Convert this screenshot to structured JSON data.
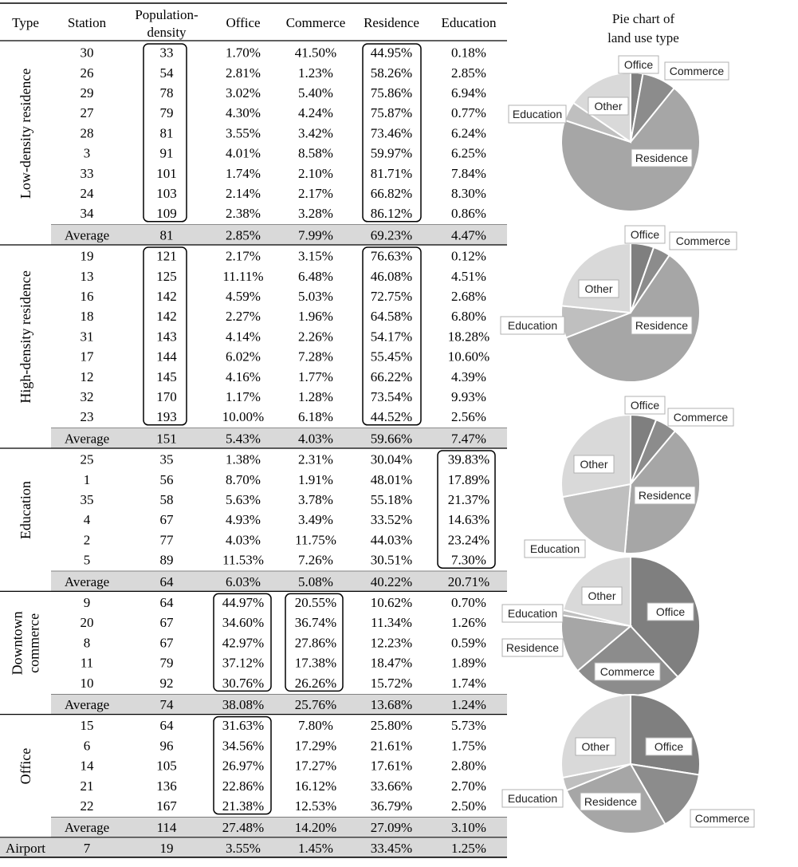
{
  "table": {
    "headers": {
      "type": "Type",
      "station": "Station",
      "density_l1": "Population-",
      "density_l2": "density",
      "office": "Office",
      "commerce": "Commerce",
      "residence": "Residence",
      "education": "Education"
    },
    "groups": [
      {
        "name": "Low-density residence",
        "name_lines": [
          "Low-density residence"
        ],
        "rows": [
          [
            "30",
            "33",
            "1.70%",
            "41.50%",
            "44.95%",
            "0.18%"
          ],
          [
            "26",
            "54",
            "2.81%",
            "1.23%",
            "58.26%",
            "2.85%"
          ],
          [
            "29",
            "78",
            "3.02%",
            "5.40%",
            "75.86%",
            "6.94%"
          ],
          [
            "27",
            "79",
            "4.30%",
            "4.24%",
            "75.87%",
            "0.77%"
          ],
          [
            "28",
            "81",
            "3.55%",
            "3.42%",
            "73.46%",
            "6.24%"
          ],
          [
            "3",
            "91",
            "4.01%",
            "8.58%",
            "59.97%",
            "6.25%"
          ],
          [
            "33",
            "101",
            "1.74%",
            "2.10%",
            "81.71%",
            "7.84%"
          ],
          [
            "24",
            "103",
            "2.14%",
            "2.17%",
            "66.82%",
            "8.30%"
          ],
          [
            "34",
            "109",
            "2.38%",
            "3.28%",
            "86.12%",
            "0.86%"
          ]
        ],
        "average": [
          "Average",
          "81",
          "2.85%",
          "7.99%",
          "69.23%",
          "4.47%"
        ]
      },
      {
        "name": "High-density residence",
        "name_lines": [
          "High-density residence"
        ],
        "rows": [
          [
            "19",
            "121",
            "2.17%",
            "3.15%",
            "76.63%",
            "0.12%"
          ],
          [
            "13",
            "125",
            "11.11%",
            "6.48%",
            "46.08%",
            "4.51%"
          ],
          [
            "16",
            "142",
            "4.59%",
            "5.03%",
            "72.75%",
            "2.68%"
          ],
          [
            "18",
            "142",
            "2.27%",
            "1.96%",
            "64.58%",
            "6.80%"
          ],
          [
            "31",
            "143",
            "4.14%",
            "2.26%",
            "54.17%",
            "18.28%"
          ],
          [
            "17",
            "144",
            "6.02%",
            "7.28%",
            "55.45%",
            "10.60%"
          ],
          [
            "12",
            "145",
            "4.16%",
            "1.77%",
            "66.22%",
            "4.39%"
          ],
          [
            "32",
            "170",
            "1.17%",
            "1.28%",
            "73.54%",
            "9.93%"
          ],
          [
            "23",
            "193",
            "10.00%",
            "6.18%",
            "44.52%",
            "2.56%"
          ]
        ],
        "average": [
          "Average",
          "151",
          "5.43%",
          "4.03%",
          "59.66%",
          "7.47%"
        ]
      },
      {
        "name": "Education",
        "name_lines": [
          "Education"
        ],
        "rows": [
          [
            "25",
            "35",
            "1.38%",
            "2.31%",
            "30.04%",
            "39.83%"
          ],
          [
            "1",
            "56",
            "8.70%",
            "1.91%",
            "48.01%",
            "17.89%"
          ],
          [
            "35",
            "58",
            "5.63%",
            "3.78%",
            "55.18%",
            "21.37%"
          ],
          [
            "4",
            "67",
            "4.93%",
            "3.49%",
            "33.52%",
            "14.63%"
          ],
          [
            "2",
            "77",
            "4.03%",
            "11.75%",
            "44.03%",
            "23.24%"
          ],
          [
            "5",
            "89",
            "11.53%",
            "7.26%",
            "30.51%",
            "7.30%"
          ]
        ],
        "average": [
          "Average",
          "64",
          "6.03%",
          "5.08%",
          "40.22%",
          "20.71%"
        ]
      },
      {
        "name": "Downtown commerce",
        "name_lines": [
          "Downtown",
          "commerce"
        ],
        "rows": [
          [
            "9",
            "64",
            "44.97%",
            "20.55%",
            "10.62%",
            "0.70%"
          ],
          [
            "20",
            "67",
            "34.60%",
            "36.74%",
            "11.34%",
            "1.26%"
          ],
          [
            "8",
            "67",
            "42.97%",
            "27.86%",
            "12.23%",
            "0.59%"
          ],
          [
            "11",
            "79",
            "37.12%",
            "17.38%",
            "18.47%",
            "1.89%"
          ],
          [
            "10",
            "92",
            "30.76%",
            "26.26%",
            "15.72%",
            "1.74%"
          ]
        ],
        "average": [
          "Average",
          "74",
          "38.08%",
          "25.76%",
          "13.68%",
          "1.24%"
        ]
      },
      {
        "name": "Office",
        "name_lines": [
          "Office"
        ],
        "rows": [
          [
            "15",
            "64",
            "31.63%",
            "7.80%",
            "25.80%",
            "5.73%"
          ],
          [
            "6",
            "96",
            "34.56%",
            "17.29%",
            "21.61%",
            "1.75%"
          ],
          [
            "14",
            "105",
            "26.97%",
            "17.27%",
            "17.61%",
            "2.80%"
          ],
          [
            "21",
            "136",
            "22.86%",
            "16.12%",
            "33.66%",
            "2.70%"
          ],
          [
            "22",
            "167",
            "21.38%",
            "12.53%",
            "36.79%",
            "2.50%"
          ]
        ],
        "average": [
          "Average",
          "114",
          "27.48%",
          "14.20%",
          "27.09%",
          "3.10%"
        ]
      }
    ],
    "airport": [
      "Airport",
      "7",
      "19",
      "3.55%",
      "1.45%",
      "33.45%",
      "1.25%"
    ]
  },
  "pies": {
    "title_l1": "Pie chart of",
    "title_l2": "land use type"
  },
  "chart_data": [
    {
      "type": "pie",
      "group": "Low-density residence",
      "labels": [
        "Office",
        "Commerce",
        "Residence",
        "Education",
        "Other"
      ],
      "values": [
        2.85,
        7.99,
        69.23,
        4.47,
        15.46
      ],
      "colors": [
        "#7f7f7f",
        "#8c8c8c",
        "#a6a6a6",
        "#bfbfbf",
        "#d9d9d9"
      ]
    },
    {
      "type": "pie",
      "group": "High-density residence",
      "labels": [
        "Office",
        "Commerce",
        "Residence",
        "Education",
        "Other"
      ],
      "values": [
        5.43,
        4.03,
        59.66,
        7.47,
        23.41
      ],
      "colors": [
        "#7f7f7f",
        "#8c8c8c",
        "#a6a6a6",
        "#bfbfbf",
        "#d9d9d9"
      ]
    },
    {
      "type": "pie",
      "group": "Education",
      "labels": [
        "Office",
        "Commerce",
        "Residence",
        "Education",
        "Other"
      ],
      "values": [
        6.03,
        5.08,
        40.22,
        20.71,
        27.96
      ],
      "colors": [
        "#7f7f7f",
        "#8c8c8c",
        "#a6a6a6",
        "#bfbfbf",
        "#d9d9d9"
      ]
    },
    {
      "type": "pie",
      "group": "Downtown commerce",
      "labels": [
        "Office",
        "Commerce",
        "Residence",
        "Education",
        "Other"
      ],
      "values": [
        38.08,
        25.76,
        13.68,
        1.24,
        21.24
      ],
      "colors": [
        "#7f7f7f",
        "#8c8c8c",
        "#a6a6a6",
        "#bfbfbf",
        "#d9d9d9"
      ]
    },
    {
      "type": "pie",
      "group": "Office",
      "labels": [
        "Office",
        "Commerce",
        "Residence",
        "Education",
        "Other"
      ],
      "values": [
        27.48,
        14.2,
        27.09,
        3.1,
        28.13
      ],
      "colors": [
        "#7f7f7f",
        "#8c8c8c",
        "#a6a6a6",
        "#bfbfbf",
        "#d9d9d9"
      ]
    }
  ]
}
